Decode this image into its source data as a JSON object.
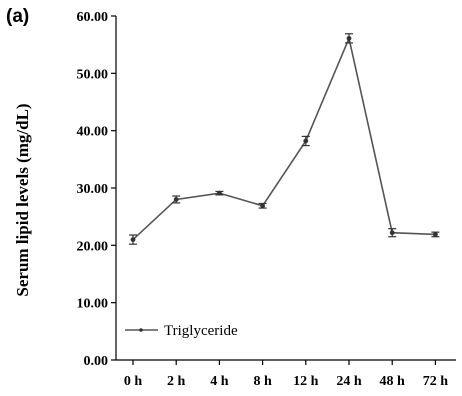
{
  "chart_data": {
    "type": "line",
    "panel_label": "(a)",
    "title": "",
    "xlabel": "",
    "ylabel": "Serum lipid levels (mg/dL)",
    "categories": [
      "0 h",
      "2 h",
      "4 h",
      "8 h",
      "12 h",
      "24 h",
      "48 h",
      "72 h"
    ],
    "ylim": [
      0,
      60
    ],
    "yticks": [
      "0.00",
      "10.00",
      "20.00",
      "30.00",
      "40.00",
      "50.00",
      "60.00"
    ],
    "legend_position": "lower-left",
    "grid": false,
    "series": [
      {
        "name": "Triglyceride",
        "color": "#555555",
        "values": [
          21.0,
          28.0,
          29.1,
          26.9,
          38.2,
          56.1,
          22.2,
          21.9
        ],
        "errors": [
          0.8,
          0.6,
          0.3,
          0.4,
          0.8,
          0.8,
          0.7,
          0.4
        ]
      }
    ]
  }
}
